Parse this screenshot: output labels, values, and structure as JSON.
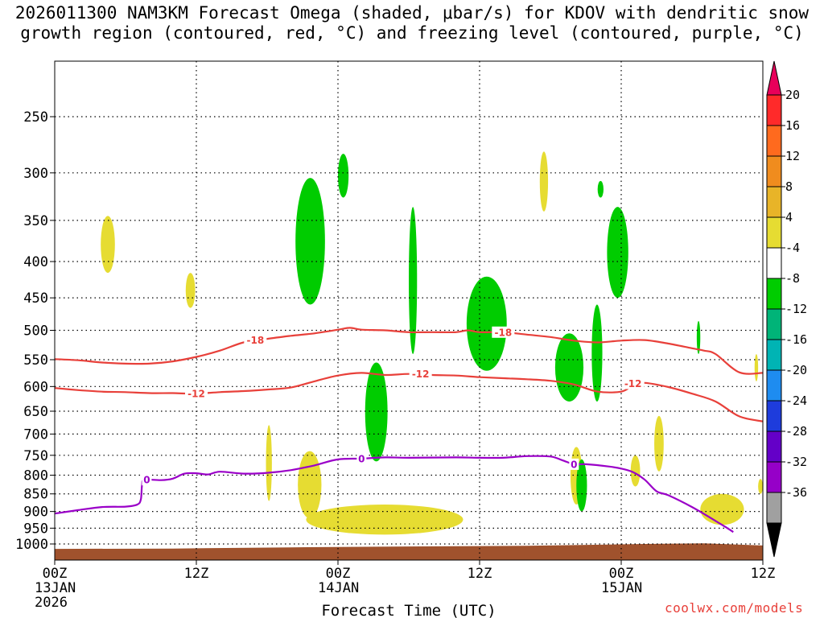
{
  "title": {
    "line1": "2026011300 NAM3KM Forecast Omega (shaded, μbar/s) for KDOV with dendritic snow",
    "line2": "growth region (contoured, red, °C) and freezing level (contoured, purple, °C)"
  },
  "watermark": "coolwx.com/models",
  "chart_data": {
    "type": "time-height cross section",
    "title": "2026011300 NAM3KM Forecast Omega (shaded, μbar/s) for KDOV with dendritic snow growth region (contoured, red, °C) and freezing level (contoured, purple, °C)",
    "xlabel": "Forecast Time (UTC)",
    "ylabel": "",
    "x_range_hours": [
      0,
      60
    ],
    "y_range_mb": [
      1035,
      200
    ],
    "x_ticks": [
      {
        "hour": 0,
        "label": "00Z",
        "sub1": "13JAN",
        "sub2": "2026"
      },
      {
        "hour": 12,
        "label": "12Z",
        "sub1": "",
        "sub2": ""
      },
      {
        "hour": 24,
        "label": "00Z",
        "sub1": "14JAN",
        "sub2": ""
      },
      {
        "hour": 36,
        "label": "12Z",
        "sub1": "",
        "sub2": ""
      },
      {
        "hour": 48,
        "label": "00Z",
        "sub1": "15JAN",
        "sub2": ""
      },
      {
        "hour": 60,
        "label": "12Z",
        "sub1": "",
        "sub2": ""
      }
    ],
    "y_ticks": [
      250,
      300,
      350,
      400,
      450,
      500,
      550,
      600,
      650,
      700,
      750,
      800,
      850,
      900,
      950,
      1000
    ],
    "grid": true,
    "colorbar": {
      "labels": [
        "20",
        "16",
        "12",
        "8",
        "4",
        "-4",
        "-8",
        "-12",
        "-16",
        "-20",
        "-24",
        "-28",
        "-32",
        "-36"
      ],
      "colors": [
        "#e8005a",
        "#ff2a2a",
        "#ff6a1e",
        "#f08c1e",
        "#e8b428",
        "#e6dc32",
        "#ffffff",
        "#00cc00",
        "#00b478",
        "#00b4b4",
        "#1e8cf0",
        "#1e3cdc",
        "#6400c8",
        "#9600c8",
        "#a0a0a0",
        "#000000"
      ]
    },
    "contours": [
      {
        "name": "dgz-top",
        "label": "-18",
        "color": "#e8403a",
        "points": [
          [
            0,
            549
          ],
          [
            2,
            551
          ],
          [
            4,
            555
          ],
          [
            6,
            557
          ],
          [
            8,
            557
          ],
          [
            10,
            553
          ],
          [
            12,
            545
          ],
          [
            14,
            534
          ],
          [
            16,
            520
          ],
          [
            18,
            514
          ],
          [
            20,
            509
          ],
          [
            22,
            505
          ],
          [
            24,
            499
          ],
          [
            25,
            496
          ],
          [
            26,
            499
          ],
          [
            28,
            500
          ],
          [
            30,
            503
          ],
          [
            32,
            503
          ],
          [
            34,
            503
          ],
          [
            35,
            500
          ],
          [
            36,
            503
          ],
          [
            38,
            503
          ],
          [
            40,
            507
          ],
          [
            42,
            511
          ],
          [
            44,
            517
          ],
          [
            46,
            520
          ],
          [
            48,
            517
          ],
          [
            50,
            516
          ],
          [
            52,
            522
          ],
          [
            54,
            530
          ],
          [
            55,
            534
          ],
          [
            56,
            540
          ],
          [
            58,
            573
          ],
          [
            60,
            574
          ]
        ],
        "label_positions": [
          [
            17,
            516
          ],
          [
            38,
            503
          ]
        ]
      },
      {
        "name": "dgz-bottom",
        "label": "-12",
        "color": "#e8403a",
        "points": [
          [
            0,
            603
          ],
          [
            2,
            607
          ],
          [
            4,
            610
          ],
          [
            6,
            611
          ],
          [
            8,
            613
          ],
          [
            10,
            613
          ],
          [
            12,
            614
          ],
          [
            14,
            611
          ],
          [
            16,
            609
          ],
          [
            18,
            606
          ],
          [
            20,
            602
          ],
          [
            22,
            590
          ],
          [
            24,
            579
          ],
          [
            26,
            574
          ],
          [
            28,
            578
          ],
          [
            30,
            576
          ],
          [
            32,
            578
          ],
          [
            34,
            579
          ],
          [
            36,
            582
          ],
          [
            38,
            584
          ],
          [
            40,
            586
          ],
          [
            42,
            589
          ],
          [
            44,
            596
          ],
          [
            46,
            610
          ],
          [
            48,
            610
          ],
          [
            49,
            598
          ],
          [
            50,
            593
          ],
          [
            52,
            601
          ],
          [
            54,
            614
          ],
          [
            56,
            630
          ],
          [
            58,
            661
          ],
          [
            60,
            672
          ]
        ],
        "label_positions": [
          [
            12,
            614
          ],
          [
            31,
            576
          ],
          [
            49,
            594
          ]
        ]
      },
      {
        "name": "freezing-level",
        "label": "0",
        "color": "#9a00c8",
        "points": [
          [
            0,
            906
          ],
          [
            2,
            896
          ],
          [
            4,
            887
          ],
          [
            6,
            886
          ],
          [
            7,
            880
          ],
          [
            7.3,
            865
          ],
          [
            7.4,
            826
          ],
          [
            7.6,
            812
          ],
          [
            9,
            813
          ],
          [
            10,
            809
          ],
          [
            11,
            796
          ],
          [
            12,
            795
          ],
          [
            13,
            798
          ],
          [
            14,
            791
          ],
          [
            16,
            796
          ],
          [
            18,
            794
          ],
          [
            20,
            787
          ],
          [
            22,
            775
          ],
          [
            24,
            760
          ],
          [
            26,
            758
          ],
          [
            28,
            755
          ],
          [
            30,
            756
          ],
          [
            34,
            755
          ],
          [
            36,
            756
          ],
          [
            38,
            756
          ],
          [
            40,
            752
          ],
          [
            42,
            753
          ],
          [
            43,
            762
          ],
          [
            44,
            772
          ],
          [
            45,
            772
          ],
          [
            47,
            778
          ],
          [
            48,
            783
          ],
          [
            49,
            792
          ],
          [
            50,
            812
          ],
          [
            51,
            843
          ],
          [
            52,
            854
          ],
          [
            54,
            887
          ],
          [
            56,
            928
          ],
          [
            57,
            950
          ],
          [
            57.5,
            962
          ]
        ],
        "label_positions": [
          [
            7.8,
            812
          ],
          [
            26,
            758
          ],
          [
            44,
            772
          ]
        ]
      }
    ],
    "omega_features": [
      {
        "name": "yellow-1",
        "value_range": "4 to 8",
        "color": "#e6dc32",
        "hours": [
          3.9,
          5.1
        ],
        "mb": [
          345,
          415
        ]
      },
      {
        "name": "yellow-2",
        "value_range": "4 to 8",
        "color": "#e6dc32",
        "hours": [
          11.1,
          11.9
        ],
        "mb": [
          415,
          465
        ]
      },
      {
        "name": "yellow-3",
        "value_range": "4 to 8",
        "color": "#e6dc32",
        "hours": [
          17.9,
          18.4
        ],
        "mb": [
          680,
          870
        ]
      },
      {
        "name": "yellow-4",
        "value_range": "4 to 8",
        "color": "#e6dc32",
        "hours": [
          20.6,
          22.6
        ],
        "mb": [
          740,
          920
        ]
      },
      {
        "name": "yellow-5",
        "value_range": "4 to 8",
        "color": "#e6dc32",
        "hours": [
          21.3,
          34.6
        ],
        "mb": [
          880,
          970
        ]
      },
      {
        "name": "yellow-6",
        "value_range": "4 to 8",
        "color": "#e6dc32",
        "hours": [
          41.1,
          41.8
        ],
        "mb": [
          280,
          340
        ]
      },
      {
        "name": "yellow-7",
        "value_range": "4 to 8",
        "color": "#e6dc32",
        "hours": [
          43.7,
          44.7
        ],
        "mb": [
          730,
          880
        ]
      },
      {
        "name": "yellow-8",
        "value_range": "4 to 8",
        "color": "#e6dc32",
        "hours": [
          48.8,
          49.6
        ],
        "mb": [
          750,
          830
        ]
      },
      {
        "name": "yellow-9",
        "value_range": "4 to 8",
        "color": "#e6dc32",
        "hours": [
          50.8,
          51.6
        ],
        "mb": [
          660,
          790
        ]
      },
      {
        "name": "yellow-10",
        "value_range": "4 to 8",
        "color": "#e6dc32",
        "hours": [
          54.7,
          58.4
        ],
        "mb": [
          850,
          940
        ]
      },
      {
        "name": "yellow-11",
        "value_range": "4 to 8",
        "color": "#e6dc32",
        "hours": [
          59.3,
          59.6
        ],
        "mb": [
          540,
          590
        ]
      },
      {
        "name": "yellow-12",
        "value_range": "4 to 8",
        "color": "#e6dc32",
        "hours": [
          59.6,
          60
        ],
        "mb": [
          810,
          850
        ]
      },
      {
        "name": "green-1",
        "value_range": "-4 to -8",
        "color": "#00cc00",
        "hours": [
          20.4,
          22.9
        ],
        "mb": [
          305,
          460
        ]
      },
      {
        "name": "green-2",
        "value_range": "-4 to -8",
        "color": "#00cc00",
        "hours": [
          24.0,
          24.9
        ],
        "mb": [
          282,
          325
        ]
      },
      {
        "name": "green-3",
        "value_range": "-4 to -8",
        "color": "#00cc00",
        "hours": [
          26.3,
          28.2
        ],
        "mb": [
          555,
          765
        ]
      },
      {
        "name": "green-4",
        "value_range": "-4 to -8",
        "color": "#00cc00",
        "hours": [
          30.0,
          30.7
        ],
        "mb": [
          335,
          540
        ]
      },
      {
        "name": "green-5",
        "value_range": "-4 to -8",
        "color": "#00cc00",
        "hours": [
          34.9,
          38.3
        ],
        "mb": [
          420,
          570
        ]
      },
      {
        "name": "green-6",
        "value_range": "-4 to -8",
        "color": "#00cc00",
        "hours": [
          42.4,
          44.8
        ],
        "mb": [
          505,
          630
        ]
      },
      {
        "name": "green-7",
        "value_range": "-4 to -8",
        "color": "#00cc00",
        "hours": [
          44.2,
          45.1
        ],
        "mb": [
          760,
          900
        ]
      },
      {
        "name": "green-8",
        "value_range": "-4 to -8",
        "color": "#00cc00",
        "hours": [
          45.5,
          46.4
        ],
        "mb": [
          460,
          630
        ]
      },
      {
        "name": "green-9",
        "value_range": "-4 to -8",
        "color": "#00cc00",
        "hours": [
          46.0,
          46.5
        ],
        "mb": [
          308,
          325
        ]
      },
      {
        "name": "green-10",
        "value_range": "-4 to -8",
        "color": "#00cc00",
        "hours": [
          46.8,
          48.6
        ],
        "mb": [
          335,
          450
        ]
      },
      {
        "name": "green-11",
        "value_range": "-4 to -8",
        "color": "#00cc00",
        "hours": [
          54.4,
          54.7
        ],
        "mb": [
          485,
          540
        ]
      }
    ],
    "terrain": {
      "color": "#a0522d",
      "points": [
        [
          0,
          1016
        ],
        [
          10,
          1015
        ],
        [
          20,
          1011
        ],
        [
          30,
          1008
        ],
        [
          40,
          1006
        ],
        [
          50,
          1000
        ],
        [
          55,
          998
        ],
        [
          60,
          1005
        ]
      ]
    }
  }
}
